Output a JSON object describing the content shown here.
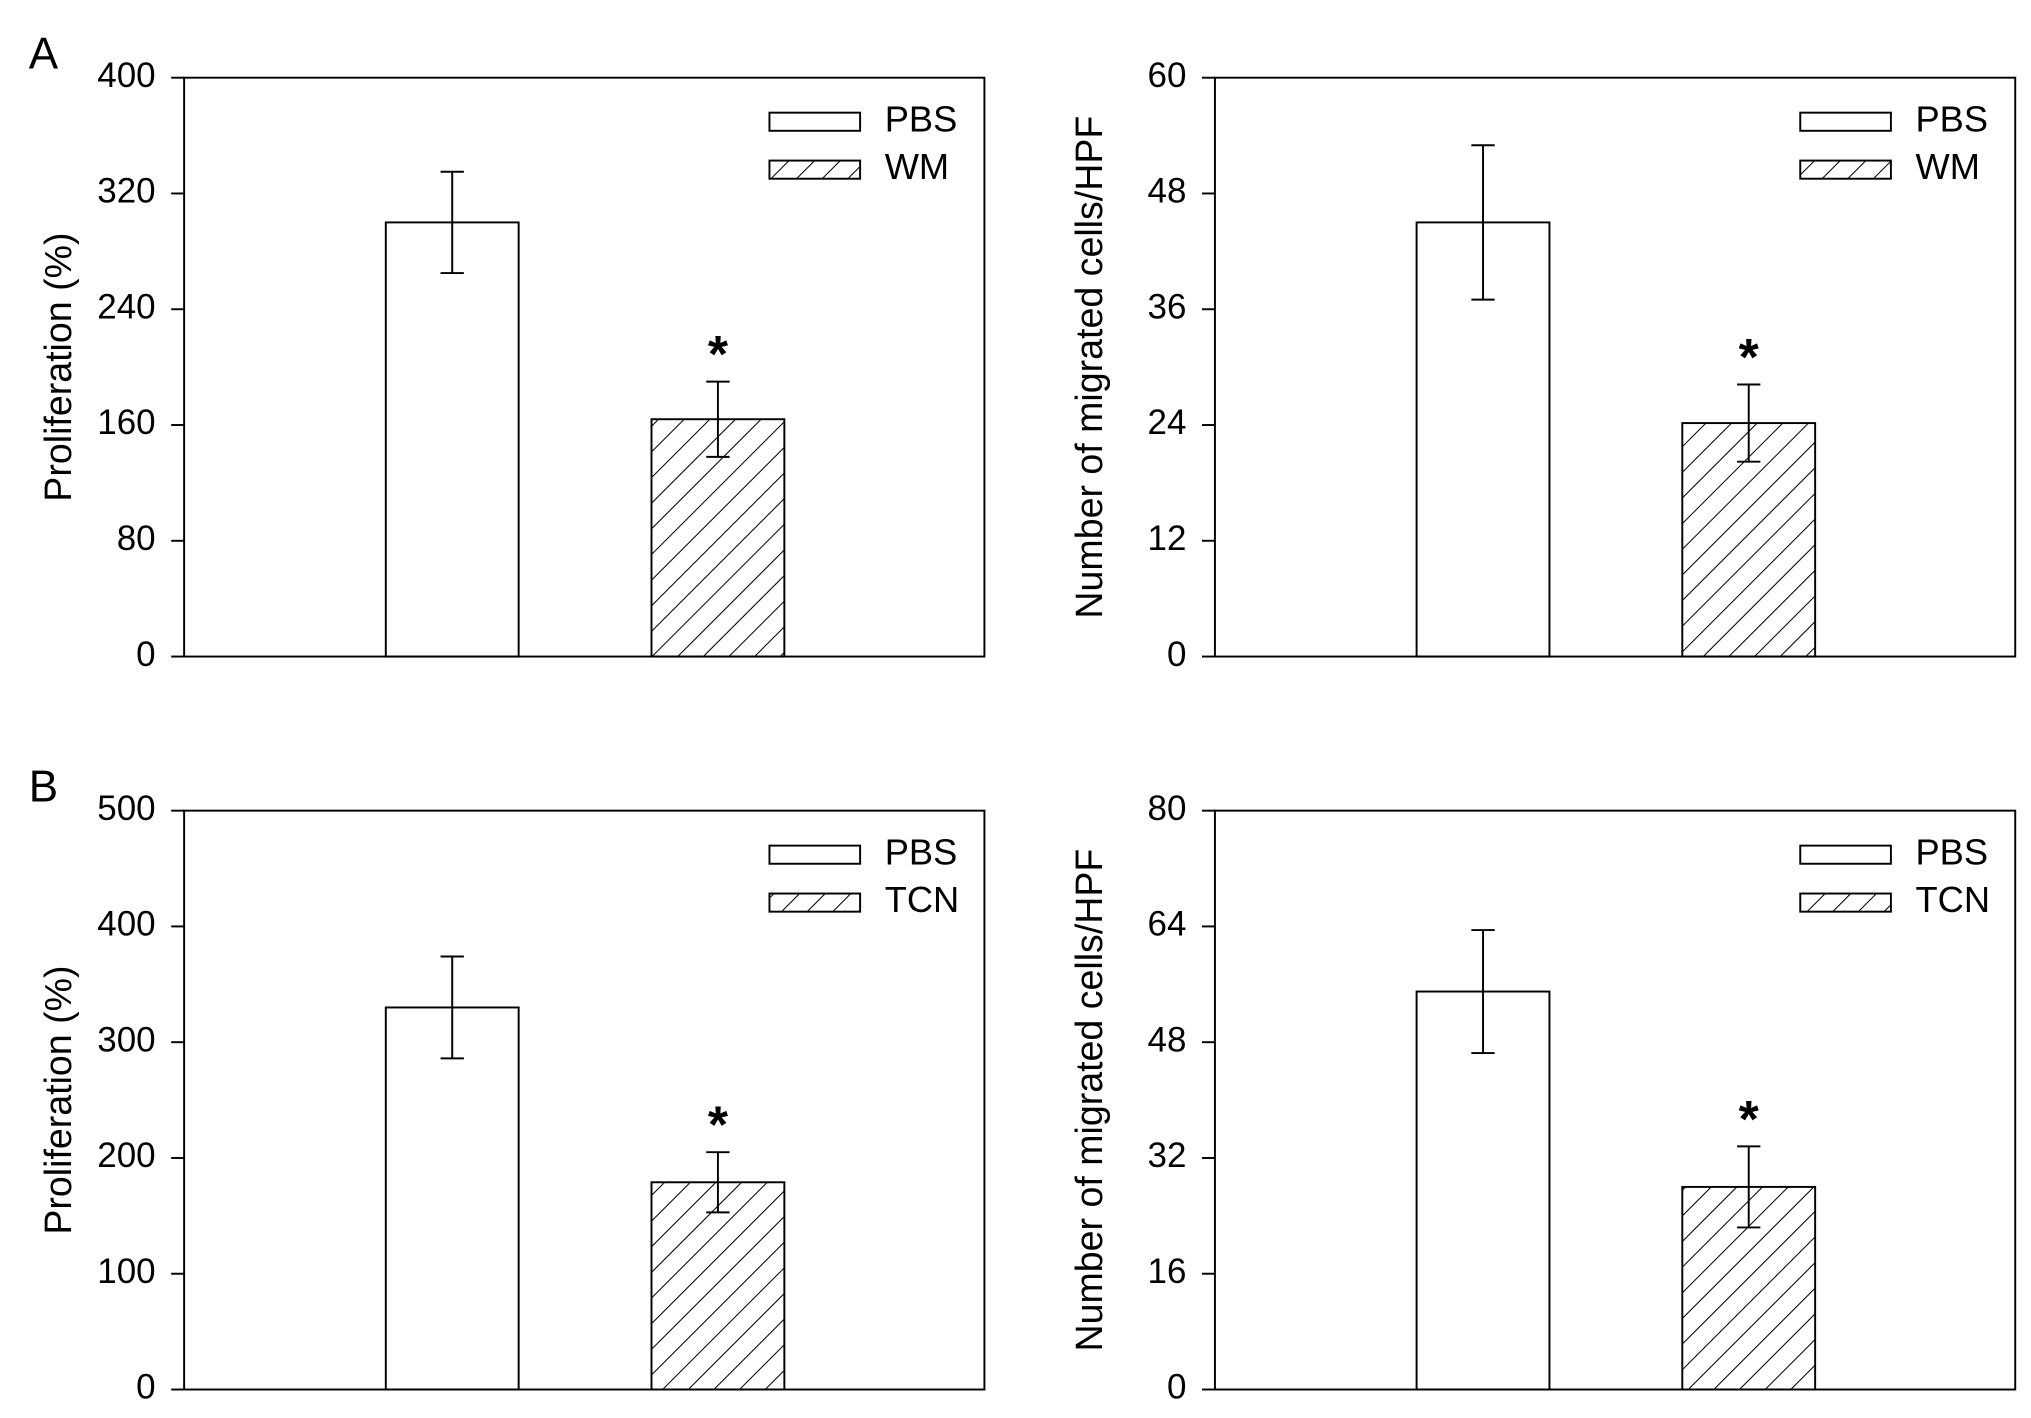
{
  "chart_data": [
    {
      "type": "bar",
      "label": "A",
      "y_label": "Proliferation (%)",
      "categories": [
        null
      ],
      "series": [
        {
          "name": "PBS",
          "color": "#ffffff",
          "pattern": "none",
          "values": [
            300
          ],
          "errors": [
            35
          ],
          "annotations": [
            null
          ]
        },
        {
          "name": "WM",
          "color": "#ffffff",
          "pattern": "hatch",
          "values": [
            164
          ],
          "errors": [
            26
          ],
          "annotations": [
            "*"
          ]
        }
      ],
      "ylim": [
        0,
        400
      ],
      "yticks": [
        0,
        80,
        160,
        240,
        320,
        400
      ],
      "legend": "upper right"
    },
    {
      "type": "bar",
      "y_label": "Number of migrated cells/HPF",
      "categories": [
        null
      ],
      "series": [
        {
          "name": "PBS",
          "color": "#ffffff",
          "pattern": "none",
          "values": [
            45
          ],
          "errors": [
            8
          ],
          "annotations": [
            null
          ]
        },
        {
          "name": "WM",
          "color": "#ffffff",
          "pattern": "hatch",
          "values": [
            24.2
          ],
          "errors": [
            4
          ],
          "annotations": [
            "*"
          ]
        }
      ],
      "ylim": [
        0,
        60
      ],
      "yticks": [
        0,
        12,
        24,
        36,
        48,
        60
      ],
      "legend": "upper right"
    },
    {
      "type": "bar",
      "label": "B",
      "y_label": "Proliferation (%)",
      "categories": [
        null
      ],
      "series": [
        {
          "name": "PBS",
          "color": "#ffffff",
          "pattern": "none",
          "values": [
            330
          ],
          "errors": [
            44
          ],
          "annotations": [
            null
          ]
        },
        {
          "name": "TCN",
          "color": "#ffffff",
          "pattern": "hatch",
          "values": [
            179
          ],
          "errors": [
            26
          ],
          "annotations": [
            "*"
          ]
        }
      ],
      "ylim": [
        0,
        500
      ],
      "yticks": [
        0,
        100,
        200,
        300,
        400,
        500
      ],
      "legend": "upper right"
    },
    {
      "type": "bar",
      "y_label": "Number of migrated cells/HPF",
      "categories": [
        null
      ],
      "series": [
        {
          "name": "PBS",
          "color": "#ffffff",
          "pattern": "none",
          "values": [
            55
          ],
          "errors": [
            8.5
          ],
          "annotations": [
            null
          ]
        },
        {
          "name": "TCN",
          "color": "#ffffff",
          "pattern": "hatch",
          "values": [
            28
          ],
          "errors": [
            5.6
          ],
          "annotations": [
            "*"
          ]
        }
      ],
      "ylim": [
        0,
        80
      ],
      "yticks": [
        0,
        16,
        32,
        48,
        64,
        80
      ],
      "legend": "upper right"
    }
  ]
}
